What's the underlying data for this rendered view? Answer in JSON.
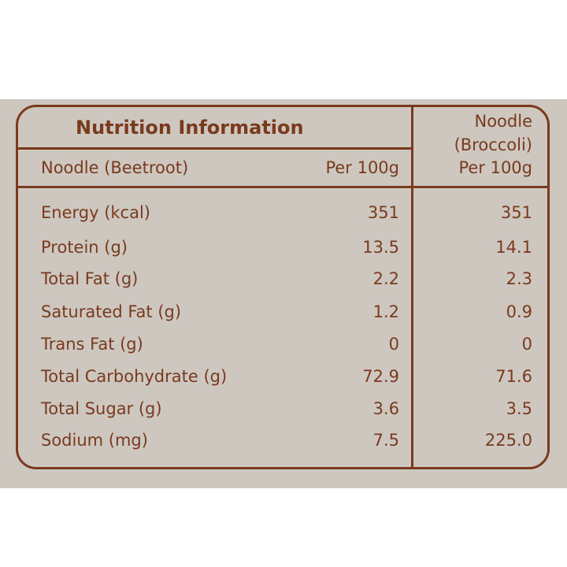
{
  "title": "Nutrition Information",
  "col1_header": "Noodle (Beetroot)",
  "col1_unit": "Per 100g",
  "col2_header_line1": "Noodle",
  "col2_header_line2": "(Broccoli)",
  "col2_unit": "Per 100g",
  "rows": [
    {
      "label": "Energy (kcal)",
      "beetroot": "351",
      "broccoli": "351"
    },
    {
      "label": "Protein (g)",
      "beetroot": "13.5",
      "broccoli": "14.1"
    },
    {
      "label": "Total Fat (g)",
      "beetroot": "2.2",
      "broccoli": "2.3"
    },
    {
      "label": "Saturated Fat (g)",
      "beetroot": "1.2",
      "broccoli": "0.9"
    },
    {
      "label": "Trans Fat (g)",
      "beetroot": "0",
      "broccoli": "0"
    },
    {
      "label": "Total Carbohydrate (g)",
      "beetroot": "72.9",
      "broccoli": "71.6"
    },
    {
      "label": "Total Sugar (g)",
      "beetroot": "3.6",
      "broccoli": "3.5"
    },
    {
      "label": "Sodium (mg)",
      "beetroot": "7.5",
      "broccoli": "225.0"
    }
  ],
  "colors": {
    "ink": "#7a3a1c",
    "background": "#cdc7c0"
  }
}
